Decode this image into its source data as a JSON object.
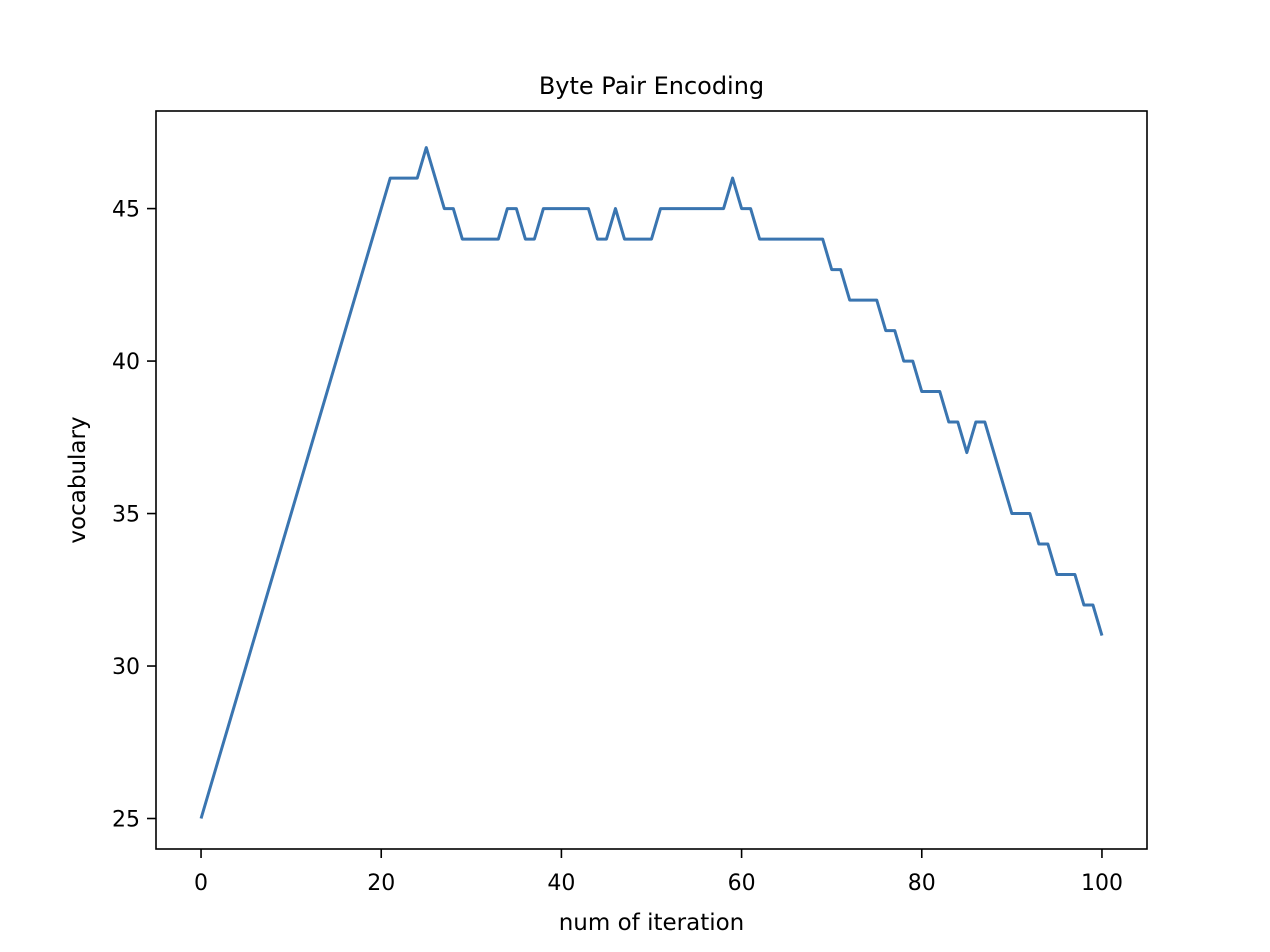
{
  "chart_data": {
    "type": "line",
    "title": "Byte Pair Encoding",
    "xlabel": "num of iteration",
    "ylabel": "vocabulary",
    "xlim": [
      -5,
      105
    ],
    "ylim": [
      24,
      48.2
    ],
    "xticks": [
      0,
      20,
      40,
      60,
      80,
      100
    ],
    "yticks": [
      25,
      30,
      35,
      40,
      45
    ],
    "xtick_labels": [
      "0",
      "20",
      "40",
      "60",
      "80",
      "100"
    ],
    "ytick_labels": [
      "25",
      "30",
      "35",
      "40",
      "45"
    ],
    "grid": false,
    "legend": null,
    "series": [
      {
        "color": "#3a75b0",
        "x": [
          0,
          1,
          2,
          3,
          4,
          5,
          6,
          7,
          8,
          9,
          10,
          11,
          12,
          13,
          14,
          15,
          16,
          17,
          18,
          19,
          20,
          21,
          22,
          23,
          24,
          25,
          26,
          27,
          28,
          29,
          30,
          31,
          32,
          33,
          34,
          35,
          36,
          37,
          38,
          39,
          40,
          41,
          42,
          43,
          44,
          45,
          46,
          47,
          48,
          49,
          50,
          51,
          52,
          53,
          54,
          55,
          56,
          57,
          58,
          59,
          60,
          61,
          62,
          63,
          64,
          65,
          66,
          67,
          68,
          69,
          70,
          71,
          72,
          73,
          74,
          75,
          76,
          77,
          78,
          79,
          80,
          81,
          82,
          83,
          84,
          85,
          86,
          87,
          88,
          89,
          90,
          91,
          92,
          93,
          94,
          95,
          96,
          97,
          98,
          99,
          100
        ],
        "y": [
          25,
          26,
          27,
          28,
          29,
          30,
          31,
          32,
          33,
          34,
          35,
          36,
          37,
          38,
          39,
          40,
          41,
          42,
          43,
          44,
          45,
          46,
          46,
          46,
          46,
          47,
          46,
          45,
          45,
          44,
          44,
          44,
          44,
          44,
          45,
          45,
          44,
          44,
          45,
          45,
          45,
          45,
          45,
          45,
          44,
          44,
          45,
          44,
          44,
          44,
          44,
          45,
          45,
          45,
          45,
          45,
          45,
          45,
          45,
          46,
          45,
          45,
          44,
          44,
          44,
          44,
          44,
          44,
          44,
          44,
          43,
          43,
          42,
          42,
          42,
          42,
          41,
          41,
          40,
          40,
          39,
          39,
          39,
          38,
          38,
          37,
          38,
          38,
          37,
          36,
          35,
          35,
          35,
          34,
          34,
          33,
          33,
          33,
          32,
          32,
          31
        ]
      }
    ]
  }
}
